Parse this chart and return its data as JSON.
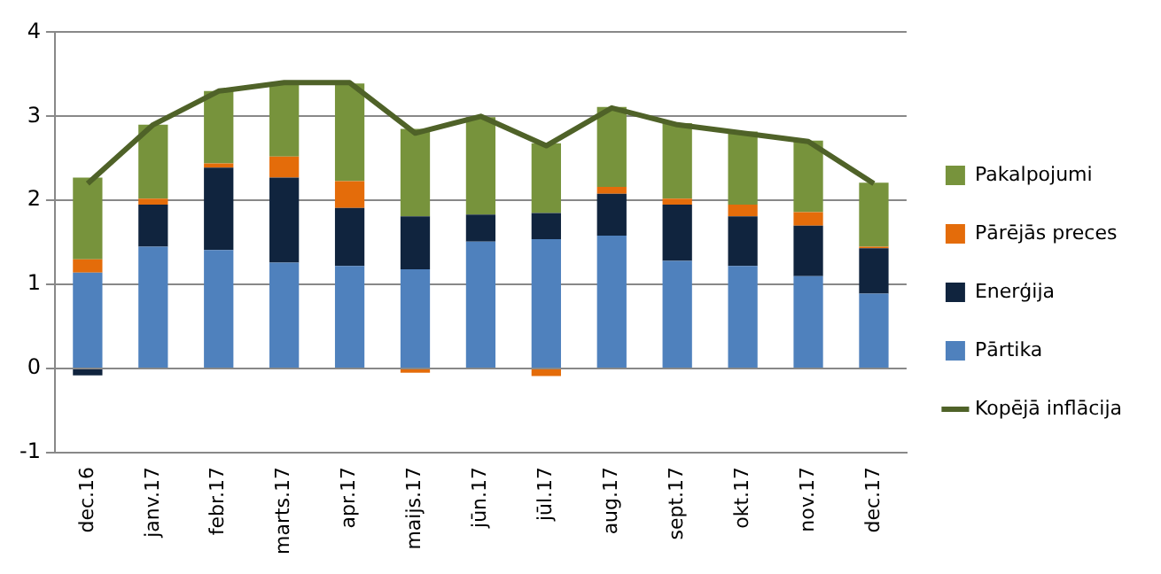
{
  "chart_data": {
    "type": "bar",
    "stacked": true,
    "categories": [
      "dec.16",
      "janv.17",
      "febr.17",
      "marts.17",
      "apr.17",
      "maijs.17",
      "jūn.17",
      "jūl.17",
      "aug.17",
      "sept.17",
      "okt.17",
      "nov.17",
      "dec.17"
    ],
    "series": [
      {
        "name": "Pārtika",
        "color": "#4f81bd",
        "values": [
          1.14,
          1.45,
          1.41,
          1.26,
          1.22,
          1.18,
          1.51,
          1.54,
          1.58,
          1.28,
          1.22,
          1.1,
          0.89
        ]
      },
      {
        "name": "Enerģija",
        "color": "#10243e",
        "values": [
          -0.08,
          0.5,
          0.98,
          1.01,
          0.69,
          0.63,
          0.32,
          0.31,
          0.5,
          0.67,
          0.59,
          0.6,
          0.54
        ]
      },
      {
        "name": "Pārējās preces",
        "color": "#e46c0a",
        "values": [
          0.16,
          0.07,
          0.05,
          0.25,
          0.32,
          -0.05,
          0,
          -0.09,
          0.08,
          0.07,
          0.14,
          0.16,
          0.02
        ]
      },
      {
        "name": "Pakalpojumi",
        "color": "#77933c",
        "values": [
          0.97,
          0.88,
          0.86,
          0.86,
          1.16,
          1.04,
          1.16,
          0.83,
          0.95,
          0.9,
          0.87,
          0.85,
          0.76
        ]
      },
      {
        "name": "Kopējā inflācija",
        "type": "line",
        "color": "#4f6228",
        "values": [
          2.2,
          2.9,
          3.3,
          3.4,
          3.4,
          2.8,
          3.0,
          2.65,
          3.1,
          2.9,
          2.8,
          2.7,
          2.2
        ]
      }
    ],
    "ylim": [
      -1,
      4
    ],
    "yticks": [
      -1,
      0,
      1,
      2,
      3,
      4
    ],
    "grid": "y",
    "legend": "right",
    "marker": "none"
  }
}
